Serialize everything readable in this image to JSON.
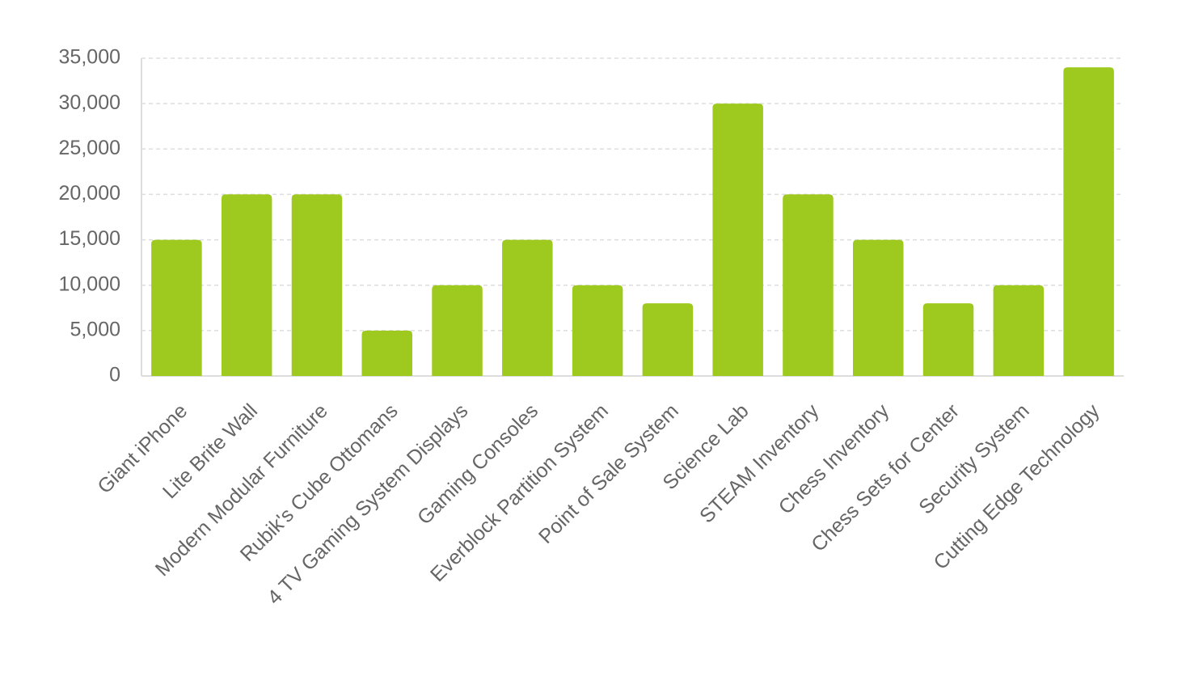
{
  "chart_data": {
    "type": "bar",
    "categories": [
      "Giant iPhone",
      "Lite Brite Wall",
      "Modern Modular Furniture",
      "Rubik's Cube Ottomans",
      "4 TV Gaming System Displays",
      "Gaming Consoles",
      "Everblock Partition System",
      "Point of Sale System",
      "Science Lab",
      "STEAM Inventory",
      "Chess Inventory",
      "Chess Sets for Center",
      "Security System",
      "Cutting Edge Technology"
    ],
    "values": [
      15000,
      20000,
      20000,
      5000,
      10000,
      15000,
      10000,
      8000,
      30000,
      20000,
      15000,
      8000,
      10000,
      34000
    ],
    "color": "#9ec91f",
    "ylim": [
      0,
      35000
    ],
    "yticks": [
      0,
      {
        "value": 5000,
        "label": "5,000"
      },
      {
        "value": 10000,
        "label": "10,000"
      },
      {
        "value": 15000,
        "label": "15,000"
      },
      {
        "value": 20000,
        "label": "20,000"
      },
      {
        "value": 25000,
        "label": "25,000"
      },
      {
        "value": 30000,
        "label": "30,000"
      },
      {
        "value": 35000,
        "label": "35,000"
      }
    ],
    "grid": true
  }
}
